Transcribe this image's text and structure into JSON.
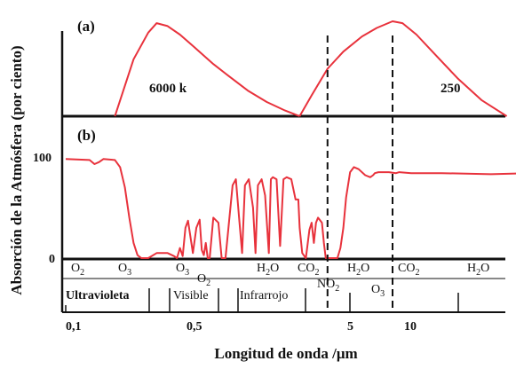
{
  "chart_data": {
    "type": "line",
    "ylabel": "Absorción de la Atmósfera (por ciento)",
    "xlabel": "Longitud de onda /μm",
    "x_scale": "log",
    "xlim": [
      0.1,
      70
    ],
    "x_ticks": [
      "0,1",
      "0,5",
      "5",
      "10"
    ],
    "y_ticks": [
      "100",
      "0"
    ],
    "colors": {
      "curve": "#e8323c",
      "axes": "#111111"
    },
    "panels": [
      {
        "label": "(a)",
        "series": [
          {
            "name": "6000 k",
            "x": [
              0.2,
              0.26,
              0.32,
              0.36,
              0.42,
              0.5,
              0.6,
              0.8,
              1.0,
              1.3,
              1.7,
              2.2,
              2.7
            ],
            "y": [
              0.0,
              0.6,
              0.88,
              0.98,
              0.95,
              0.86,
              0.74,
              0.55,
              0.42,
              0.27,
              0.15,
              0.06,
              0.0
            ]
          },
          {
            "name": "250",
            "x": [
              2.7,
              3.2,
              4.0,
              5.0,
              6.5,
              8.0,
              10.0,
              11.5,
              14.0,
              18.0,
              25.0,
              35.0,
              50.0
            ],
            "y": [
              0.0,
              0.22,
              0.5,
              0.68,
              0.84,
              0.93,
              1.0,
              0.98,
              0.86,
              0.66,
              0.4,
              0.17,
              0.0
            ]
          }
        ]
      },
      {
        "label": "(b)",
        "series": [
          {
            "name": "",
            "x": [
              0.1,
              0.14,
              0.15,
              0.16,
              0.17,
              0.2,
              0.215,
              0.23,
              0.245,
              0.26,
              0.275,
              0.29,
              0.3,
              0.32,
              0.36,
              0.42,
              0.46,
              0.48,
              0.5,
              0.52,
              0.54,
              0.56,
              0.6,
              0.63,
              0.66,
              0.68,
              0.7,
              0.72,
              0.74,
              0.76,
              0.8,
              0.86,
              0.9,
              0.95,
              1.05,
              1.1,
              1.15,
              1.2,
              1.25,
              1.32,
              1.4,
              1.45,
              1.5,
              1.58,
              1.66,
              1.75,
              1.8,
              1.85,
              1.95,
              2.05,
              2.15,
              2.25,
              2.4,
              2.55,
              2.65,
              2.7,
              2.8,
              2.95,
              3.1,
              3.2,
              3.3,
              3.4,
              3.5,
              3.7,
              3.8,
              3.9,
              4.05,
              4.15,
              4.3,
              4.6,
              4.8,
              5.0,
              5.2,
              5.5,
              5.8,
              6.2,
              6.8,
              7.3,
              7.6,
              7.8,
              8.2,
              8.6,
              9.5,
              10.5,
              11.0,
              13.0,
              20.0,
              40.0,
              70.0
            ],
            "y": [
              98,
              97,
              93,
              95,
              98,
              97,
              90,
              70,
              40,
              15,
              3,
              0,
              0,
              0,
              5,
              5,
              2,
              0,
              10,
              2,
              30,
              37,
              5,
              30,
              38,
              8,
              3,
              15,
              0,
              0,
              40,
              35,
              0,
              0,
              72,
              78,
              40,
              5,
              72,
              78,
              50,
              5,
              72,
              78,
              62,
              5,
              78,
              80,
              78,
              12,
              78,
              80,
              78,
              58,
              58,
              30,
              5,
              0,
              28,
              35,
              15,
              35,
              40,
              35,
              15,
              0,
              0,
              0,
              0,
              0,
              10,
              30,
              60,
              85,
              90,
              88,
              82,
              80,
              82,
              84,
              85,
              85,
              85,
              84,
              85,
              84,
              84,
              83,
              84
            ]
          }
        ],
        "gases": [
          {
            "text": "O",
            "sub": "2"
          },
          {
            "text": "O",
            "sub": "3"
          },
          {
            "text": "O",
            "sub": "3"
          },
          {
            "text": "O",
            "sub": "2"
          },
          {
            "text": "H",
            "sub": "2",
            "tail": "O"
          },
          {
            "text": "CO",
            "sub": "2"
          },
          {
            "text": "NO",
            "sub": "2"
          },
          {
            "text": "H",
            "sub": "2",
            "tail": "O"
          },
          {
            "text": "O",
            "sub": "3"
          },
          {
            "text": "CO",
            "sub": "2"
          },
          {
            "text": "H",
            "sub": "2",
            "tail": "O"
          }
        ],
        "regions": [
          "Ultravioleta",
          "Visible",
          "Infrarrojo"
        ]
      }
    ],
    "annotations": [
      "6000 k",
      "250"
    ],
    "dashed_lines_x": [
      4.0,
      10.0
    ]
  }
}
